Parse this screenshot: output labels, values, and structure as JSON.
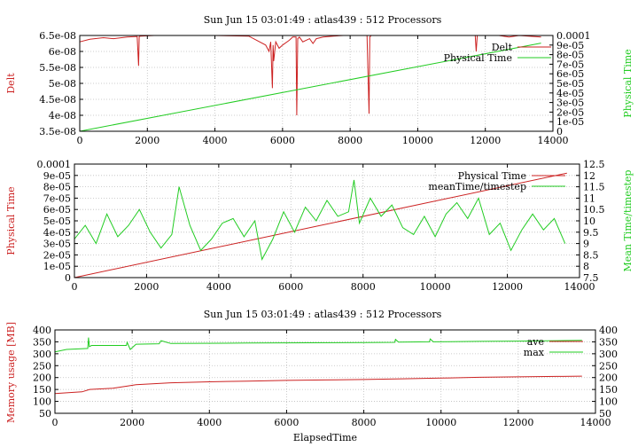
{
  "chart_data": [
    {
      "type": "line",
      "title": "Sun Jun 15 03:01:49 : atlas439 : 512 Processors",
      "grid": true,
      "legend_position": "top-right",
      "x_range": [
        0,
        14000
      ],
      "x_ticks": [
        "0",
        "2000",
        "4000",
        "6000",
        "8000",
        "10000",
        "12000",
        "14000"
      ],
      "y_left": {
        "label": "Delt",
        "range": [
          3.5e-08,
          6.5e-08
        ],
        "color": "#cc2222",
        "ticks": [
          "3.5e-08",
          "4e-08",
          "4.5e-08",
          "5e-08",
          "5.5e-08",
          "6e-08",
          "6.5e-08"
        ]
      },
      "y_right": {
        "label": "Physical Time",
        "range": [
          0,
          0.0001
        ],
        "color": "#22cc22",
        "ticks": [
          "0",
          "1e-05",
          "2e-05",
          "3e-05",
          "4e-05",
          "5e-05",
          "6e-05",
          "7e-05",
          "8e-05",
          "9e-05",
          "0.0001"
        ]
      },
      "series": [
        {
          "name": "Delt",
          "axis": "left",
          "color": "#cc2222",
          "x": [
            0,
            300,
            700,
            1000,
            1400,
            1700,
            1740,
            1760,
            1800,
            2200,
            3000,
            4000,
            5000,
            5500,
            5600,
            5650,
            5700,
            5720,
            5740,
            5800,
            5900,
            6000,
            6200,
            6300,
            6400,
            6420,
            6450,
            6500,
            6600,
            6800,
            6900,
            7000,
            7200,
            7500,
            7800,
            8200,
            8500,
            8560,
            8580,
            8620,
            8700,
            9000,
            10000,
            11000,
            11700,
            11730,
            11760,
            12000,
            12400,
            12700,
            13000,
            13650
          ],
          "y": [
            6.3e-08,
            6.38e-08,
            6.43e-08,
            6.4e-08,
            6.45e-08,
            6.47e-08,
            5.55e-08,
            6.47e-08,
            6.48e-08,
            6.5e-08,
            6.5e-08,
            6.5e-08,
            6.48e-08,
            6.2e-08,
            6e-08,
            6.3e-08,
            4.85e-08,
            6.2e-08,
            5.7e-08,
            6.3e-08,
            6.1e-08,
            6.2e-08,
            6.35e-08,
            6.45e-08,
            6.45e-08,
            4e-08,
            6.4e-08,
            6.45e-08,
            6.3e-08,
            6.4e-08,
            6.25e-08,
            6.4e-08,
            6.45e-08,
            6.48e-08,
            6.5e-08,
            6.5e-08,
            6.5e-08,
            4.05e-08,
            6.45e-08,
            6.5e-08,
            6.5e-08,
            6.5e-08,
            6.5e-08,
            6.5e-08,
            6.5e-08,
            6e-08,
            6.5e-08,
            6.5e-08,
            6.5e-08,
            6.45e-08,
            6.5e-08,
            6.45e-08
          ]
        },
        {
          "name": "Physical Time",
          "axis": "right",
          "color": "#22cc22",
          "x": [
            0,
            13650
          ],
          "y": [
            0,
            9.2e-05
          ]
        }
      ]
    },
    {
      "type": "line",
      "title": "",
      "grid": true,
      "legend_position": "top-right",
      "x_range": [
        0,
        14000
      ],
      "x_ticks": [
        "0",
        "2000",
        "4000",
        "6000",
        "8000",
        "10000",
        "12000",
        "14000"
      ],
      "y_left": {
        "label": "Physical Time",
        "range": [
          0,
          0.0001
        ],
        "color": "#cc2222",
        "ticks": [
          "0",
          "1e-05",
          "2e-05",
          "3e-05",
          "4e-05",
          "5e-05",
          "6e-05",
          "7e-05",
          "8e-05",
          "9e-05",
          "0.0001"
        ]
      },
      "y_right": {
        "label": "Mean Time/timestep",
        "range": [
          7.5,
          12.5
        ],
        "color": "#22cc22",
        "ticks": [
          "7.5",
          "8",
          "8.5",
          "9",
          "9.5",
          "10",
          "10.5",
          "11",
          "11.5",
          "12",
          "12.5"
        ]
      },
      "series": [
        {
          "name": "Physical Time",
          "axis": "left",
          "color": "#cc2222",
          "x": [
            0,
            13650
          ],
          "y": [
            0,
            9.2e-05
          ]
        },
        {
          "name": "meanTime/timestep",
          "axis": "right",
          "color": "#22cc22",
          "x": [
            0,
            300,
            600,
            900,
            1200,
            1500,
            1800,
            2100,
            2400,
            2700,
            2900,
            3200,
            3500,
            3800,
            4100,
            4400,
            4700,
            5000,
            5200,
            5500,
            5800,
            6100,
            6400,
            6700,
            7000,
            7300,
            7600,
            7750,
            7900,
            8200,
            8500,
            8800,
            9100,
            9400,
            9700,
            10000,
            10300,
            10600,
            10900,
            11200,
            11500,
            11800,
            12100,
            12400,
            12700,
            13000,
            13300,
            13600
          ],
          "y": [
            9.2,
            9.8,
            9.0,
            10.3,
            9.3,
            9.8,
            10.5,
            9.5,
            8.8,
            9.4,
            11.5,
            9.8,
            8.7,
            9.2,
            9.9,
            10.1,
            9.3,
            10.0,
            8.3,
            9.2,
            10.4,
            9.5,
            10.6,
            10.0,
            10.9,
            10.2,
            10.4,
            11.8,
            9.9,
            11.0,
            10.2,
            10.7,
            9.7,
            9.4,
            10.2,
            9.3,
            10.3,
            10.8,
            10.1,
            11.0,
            9.4,
            9.9,
            8.7,
            9.6,
            10.3,
            9.6,
            10.1,
            9.0
          ]
        }
      ]
    },
    {
      "type": "line",
      "title": "Sun Jun 15 03:01:49 : atlas439 : 512 Processors",
      "grid": true,
      "legend_position": "top-right",
      "x_label": "ElapsedTime",
      "x_range": [
        0,
        14000
      ],
      "x_ticks": [
        "0",
        "2000",
        "4000",
        "6000",
        "8000",
        "10000",
        "12000",
        "14000"
      ],
      "y_left": {
        "label": "Memory usage [MB]",
        "range": [
          50,
          400
        ],
        "color": "#cc2222",
        "ticks": [
          "50",
          "100",
          "150",
          "200",
          "250",
          "300",
          "350",
          "400"
        ]
      },
      "y_right": {
        "label": "",
        "range": [
          50,
          400
        ],
        "color": "#000000",
        "ticks": [
          "50",
          "100",
          "150",
          "200",
          "250",
          "300",
          "350",
          "400"
        ]
      },
      "series": [
        {
          "name": "ave",
          "axis": "left",
          "color": "#cc2222",
          "x": [
            0,
            300,
            700,
            900,
            1500,
            1900,
            2100,
            3000,
            4000,
            5000,
            6000,
            7000,
            8000,
            9000,
            10000,
            11000,
            12000,
            13000,
            13650
          ],
          "y": [
            133,
            136,
            140,
            150,
            155,
            165,
            170,
            178,
            182,
            185,
            188,
            190,
            192,
            195,
            198,
            201,
            203,
            205,
            206
          ]
        },
        {
          "name": "max",
          "axis": "left",
          "color": "#22cc22",
          "x": [
            0,
            300,
            850,
            870,
            890,
            950,
            1850,
            1870,
            1950,
            2100,
            2700,
            2750,
            3000,
            5000,
            8000,
            8800,
            8820,
            8900,
            9700,
            9720,
            9800,
            11000,
            12000,
            13000,
            13650
          ],
          "y": [
            308,
            318,
            322,
            368,
            330,
            335,
            335,
            348,
            318,
            340,
            342,
            355,
            343,
            345,
            347,
            348,
            360,
            349,
            350,
            362,
            350,
            352,
            353,
            355,
            356
          ]
        }
      ]
    }
  ]
}
